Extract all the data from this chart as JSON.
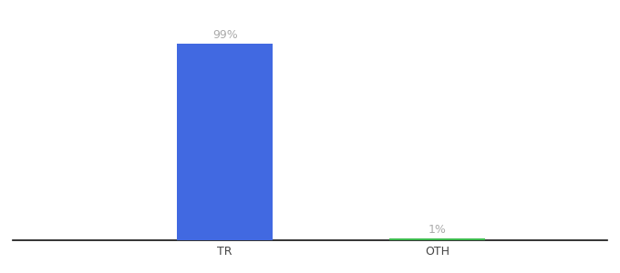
{
  "categories": [
    "TR",
    "OTH"
  ],
  "values": [
    99,
    1
  ],
  "bar_colors": [
    "#4169e1",
    "#3dba4e"
  ],
  "label_texts": [
    "99%",
    "1%"
  ],
  "background_color": "#ffffff",
  "ylim": [
    0,
    110
  ],
  "bar_width": 0.45,
  "label_fontsize": 9,
  "tick_fontsize": 9,
  "label_color": "#aaaaaa",
  "axis_line_color": "#111111"
}
